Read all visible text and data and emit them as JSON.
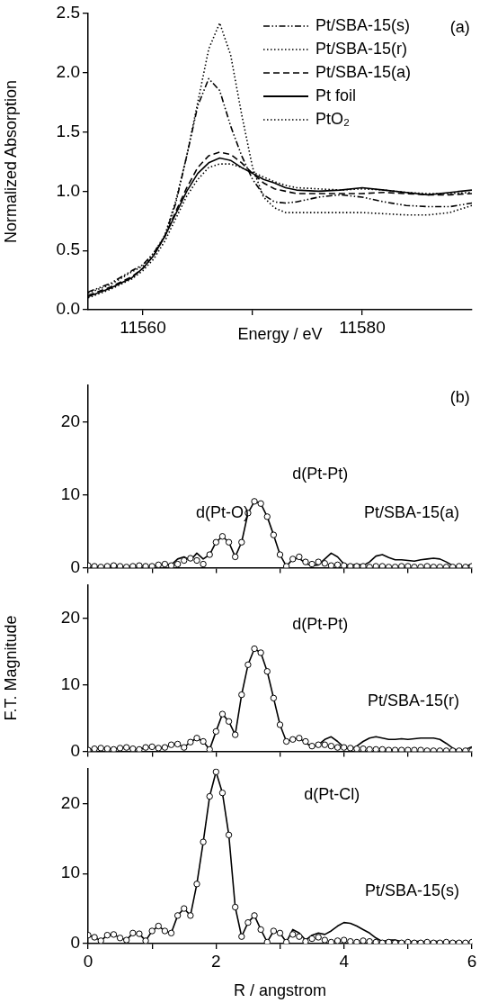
{
  "chart_data": [
    {
      "type": "line",
      "xlabel": "Energy / eV",
      "ylabel": "Normalized Absorption",
      "annotations": [
        "(a)"
      ],
      "legend": "top right",
      "grid": false,
      "x": [
        11555,
        11557,
        11559,
        11560,
        11561,
        11562,
        11563,
        11564,
        11565,
        11566,
        11567,
        11568,
        11569,
        11570,
        11571,
        11572,
        11573,
        11574,
        11576,
        11578,
        11580,
        11582,
        11584,
        11586,
        11588,
        11590
      ],
      "xlim": [
        11555,
        11590
      ],
      "xticks": [
        11560,
        {
          "value": 11570,
          "label": null
        },
        11580
      ],
      "ylim": [
        0,
        2.5
      ],
      "yticks": [
        {
          "value": 0,
          "label": "0.0"
        },
        {
          "value": 0.5,
          "label": "0.5"
        },
        {
          "value": 1,
          "label": "1.0"
        },
        {
          "value": 1.5,
          "label": "1.5"
        },
        {
          "value": 2,
          "label": "2.0"
        },
        {
          "value": 2.5,
          "label": "2.5"
        }
      ],
      "series": [
        {
          "name": "Pt/SBA-15(s)",
          "color": "#000000",
          "line_style": "dashdot",
          "values": [
            0.15,
            0.22,
            0.33,
            0.38,
            0.48,
            0.62,
            0.9,
            1.3,
            1.72,
            1.95,
            1.85,
            1.55,
            1.3,
            1.1,
            0.97,
            0.91,
            0.9,
            0.91,
            0.95,
            0.97,
            0.95,
            0.91,
            0.88,
            0.87,
            0.87,
            0.9
          ]
        },
        {
          "name": "Pt/SBA-15(r)",
          "color": "#000000",
          "line_style": "dotted",
          "values": [
            0.1,
            0.17,
            0.26,
            0.33,
            0.43,
            0.58,
            0.77,
            0.96,
            1.1,
            1.2,
            1.23,
            1.23,
            1.2,
            1.16,
            1.12,
            1.08,
            1.05,
            1.03,
            1.02,
            1.01,
            1.02,
            1.01,
            0.99,
            0.98,
            0.98,
            0.99
          ]
        },
        {
          "name": "Pt/SBA-15(a)",
          "color": "#000000",
          "line_style": "dashed",
          "values": [
            0.12,
            0.19,
            0.28,
            0.35,
            0.46,
            0.62,
            0.83,
            1.03,
            1.2,
            1.3,
            1.33,
            1.31,
            1.24,
            1.15,
            1.07,
            1.02,
            1.0,
            0.98,
            0.98,
            0.98,
            0.98,
            0.99,
            0.98,
            0.97,
            0.97,
            0.98
          ]
        },
        {
          "name": "Pt foil",
          "color": "#000000",
          "line_style": "solid",
          "values": [
            0.11,
            0.18,
            0.27,
            0.35,
            0.46,
            0.62,
            0.81,
            1.0,
            1.15,
            1.24,
            1.28,
            1.26,
            1.2,
            1.15,
            1.1,
            1.07,
            1.03,
            1.01,
            1.0,
            1.01,
            1.03,
            1.01,
            0.99,
            0.97,
            0.99,
            1.01
          ]
        },
        {
          "name": "PtO₂",
          "color": "#000000",
          "line_style": "dotted",
          "values": [
            0.14,
            0.21,
            0.32,
            0.37,
            0.48,
            0.63,
            0.92,
            1.3,
            1.75,
            2.2,
            2.42,
            2.15,
            1.65,
            1.2,
            0.95,
            0.86,
            0.82,
            0.82,
            0.82,
            0.82,
            0.82,
            0.81,
            0.8,
            0.8,
            0.82,
            0.88
          ]
        }
      ]
    },
    {
      "type": "line",
      "annotations": [
        "(b)",
        "d(Pt-O)",
        "d(Pt-Pt)"
      ],
      "grid": false,
      "tick_labels": "y",
      "x": [
        0,
        0.1,
        0.2,
        0.3,
        0.4,
        0.5,
        0.6,
        0.7,
        0.8,
        0.9,
        1,
        1.1,
        1.2,
        1.3,
        1.4,
        1.5,
        1.6,
        1.7,
        1.8,
        1.9,
        2,
        2.1,
        2.2,
        2.3,
        2.4,
        2.5,
        2.6,
        2.7,
        2.8,
        2.9,
        3,
        3.1,
        3.2,
        3.3,
        3.4,
        3.5,
        3.6,
        3.7,
        3.8,
        3.9,
        4,
        4.1,
        4.2,
        4.3,
        4.4,
        4.5,
        4.6,
        4.7,
        4.8,
        4.9,
        5,
        5.1,
        5.2,
        5.3,
        5.4,
        5.5,
        5.6,
        5.7,
        5.8,
        5.9,
        6
      ],
      "xlim": [
        0,
        6
      ],
      "xticks": [
        0,
        {
          "value": 1,
          "label": null
        },
        2,
        {
          "value": 3,
          "label": null
        },
        4,
        {
          "value": 5,
          "label": null
        },
        6
      ],
      "ylim": [
        0,
        25
      ],
      "yticks": [
        0,
        10,
        20
      ],
      "series": [
        {
          "name": "Pt/SBA-15(a)",
          "color": "#000000",
          "values": [
            0.3,
            0.2,
            0.1,
            0.2,
            0.3,
            0.2,
            0.1,
            0.2,
            0.3,
            0.2,
            0.2,
            0.4,
            0.5,
            0.4,
            1.2,
            1.5,
            1.0,
            2.0,
            1.2,
            1.8,
            3.5,
            4.3,
            3.5,
            1.5,
            3.5,
            7.5,
            9.1,
            8.8,
            7.0,
            4.5,
            1.8,
            0.2,
            1.2,
            1.3,
            0.6,
            0.3,
            0.4,
            1.2,
            2.0,
            1.5,
            0.5,
            0.3,
            0.5,
            0.3,
            0.8,
            1.6,
            1.8,
            1.4,
            1.1,
            1.1,
            1.0,
            0.9,
            1.1,
            1.2,
            1.3,
            1.2,
            0.8,
            0.3,
            0.1,
            0.3,
            0.4
          ]
        },
        {
          "type": "scatter",
          "marker": "circle",
          "color": "#000000",
          "values": [
            0.3,
            0.2,
            0.1,
            0.2,
            0.3,
            0.2,
            0.1,
            0.2,
            0.3,
            0.2,
            0.2,
            0.4,
            0.5,
            0.3,
            0.5,
            1.0,
            1.3,
            1.0,
            0.5,
            1.8,
            3.5,
            4.3,
            3.5,
            1.5,
            3.5,
            7.5,
            9.1,
            8.8,
            7.0,
            4.5,
            1.8,
            0.2,
            1.2,
            1.5,
            0.8,
            0.5,
            0.8,
            0.6,
            0.3,
            0.4,
            0.3,
            0.2,
            0.2,
            0.2,
            0.1,
            0.2,
            0.2,
            0.1,
            0.1,
            0.2,
            0.2,
            0.1,
            0.1,
            0.2,
            0.1,
            0.1,
            0.1,
            0.1,
            0.2,
            0.1,
            0.2
          ]
        }
      ]
    },
    {
      "type": "line",
      "ylabel": "F.T. Magnitude",
      "annotations": [
        "d(Pt-Pt)"
      ],
      "grid": false,
      "tick_labels": "y",
      "x": [
        0,
        0.1,
        0.2,
        0.3,
        0.4,
        0.5,
        0.6,
        0.7,
        0.8,
        0.9,
        1,
        1.1,
        1.2,
        1.3,
        1.4,
        1.5,
        1.6,
        1.7,
        1.8,
        1.9,
        2,
        2.1,
        2.2,
        2.3,
        2.4,
        2.5,
        2.6,
        2.7,
        2.8,
        2.9,
        3,
        3.1,
        3.2,
        3.3,
        3.4,
        3.5,
        3.6,
        3.7,
        3.8,
        3.9,
        4,
        4.1,
        4.2,
        4.3,
        4.4,
        4.5,
        4.6,
        4.7,
        4.8,
        4.9,
        5,
        5.1,
        5.2,
        5.3,
        5.4,
        5.5,
        5.6,
        5.7,
        5.8,
        5.9,
        6
      ],
      "xlim": [
        0,
        6
      ],
      "xticks": [
        0,
        {
          "value": 1,
          "label": null
        },
        2,
        {
          "value": 3,
          "label": null
        },
        4,
        {
          "value": 5,
          "label": null
        },
        6
      ],
      "ylim": [
        0,
        25
      ],
      "yticks": [
        0,
        10,
        20
      ],
      "series": [
        {
          "name": "Pt/SBA-15(r)",
          "color": "#000000",
          "values": [
            0.2,
            0.4,
            0.5,
            0.4,
            0.3,
            0.5,
            0.6,
            0.4,
            0.3,
            0.6,
            0.7,
            0.5,
            0.6,
            1.0,
            1.1,
            0.6,
            1.4,
            2.0,
            1.5,
            0.3,
            3.0,
            5.6,
            4.5,
            2.5,
            8.5,
            13.0,
            15.4,
            14.8,
            12.0,
            8.0,
            4.0,
            1.5,
            1.8,
            2.0,
            1.3,
            0.7,
            1.0,
            1.8,
            2.2,
            1.5,
            0.6,
            0.3,
            0.8,
            1.5,
            2.0,
            2.2,
            2.0,
            1.8,
            1.8,
            1.9,
            1.8,
            1.9,
            2.0,
            2.0,
            2.0,
            1.8,
            1.2,
            0.5,
            0.0,
            0.3,
            0.7
          ]
        },
        {
          "type": "scatter",
          "marker": "circle",
          "color": "#000000",
          "values": [
            0.2,
            0.4,
            0.5,
            0.4,
            0.3,
            0.5,
            0.6,
            0.4,
            0.3,
            0.6,
            0.7,
            0.5,
            0.6,
            1.0,
            1.1,
            0.6,
            1.4,
            2.0,
            1.5,
            0.3,
            3.0,
            5.6,
            4.5,
            2.5,
            8.5,
            13.0,
            15.4,
            14.8,
            12.0,
            8.0,
            4.0,
            1.5,
            1.8,
            2.0,
            1.5,
            0.8,
            1.0,
            1.0,
            0.8,
            0.6,
            0.6,
            0.5,
            0.4,
            0.4,
            0.3,
            0.3,
            0.3,
            0.2,
            0.2,
            0.2,
            0.2,
            0.2,
            0.2,
            0.1,
            0.1,
            0.1,
            0.1,
            0.1,
            0.1,
            0.1,
            0.1
          ]
        }
      ]
    },
    {
      "type": "line",
      "xlabel": "R / angstrom",
      "annotations": [
        "d(Pt-Cl)"
      ],
      "grid": false,
      "x": [
        0,
        0.1,
        0.2,
        0.3,
        0.4,
        0.5,
        0.6,
        0.7,
        0.8,
        0.9,
        1,
        1.1,
        1.2,
        1.3,
        1.4,
        1.5,
        1.6,
        1.7,
        1.8,
        1.9,
        2,
        2.1,
        2.2,
        2.3,
        2.4,
        2.5,
        2.6,
        2.7,
        2.8,
        2.9,
        3,
        3.1,
        3.2,
        3.3,
        3.4,
        3.5,
        3.6,
        3.7,
        3.8,
        3.9,
        4,
        4.1,
        4.2,
        4.3,
        4.4,
        4.5,
        4.6,
        4.7,
        4.8,
        4.9,
        5,
        5.1,
        5.2,
        5.3,
        5.4,
        5.5,
        5.6,
        5.7,
        5.8,
        5.9,
        6
      ],
      "xlim": [
        0,
        6
      ],
      "xticks": [
        0,
        {
          "value": 1,
          "label": null
        },
        2,
        {
          "value": 3,
          "label": null
        },
        4,
        {
          "value": 5,
          "label": null
        },
        6
      ],
      "ylim": [
        0,
        25
      ],
      "yticks": [
        0,
        10,
        20
      ],
      "series": [
        {
          "name": "Pt/SBA-15(s)",
          "color": "#000000",
          "values": [
            1.2,
            0.9,
            0.4,
            1.2,
            1.3,
            0.8,
            0.5,
            1.5,
            1.4,
            0.4,
            1.8,
            2.5,
            1.8,
            1.5,
            4.0,
            5.0,
            4.0,
            8.5,
            14.5,
            21.0,
            24.5,
            21.5,
            15.5,
            5.2,
            1.0,
            3.0,
            4.0,
            2.0,
            0.2,
            1.8,
            1.5,
            0.2,
            2.0,
            1.5,
            0.5,
            1.2,
            1.5,
            1.3,
            1.8,
            2.5,
            3.0,
            2.9,
            2.5,
            2.0,
            1.5,
            0.8,
            0.3,
            0.5,
            0.5,
            0.3,
            0.2,
            0.3,
            0.3,
            0.2,
            0.3,
            0.3,
            0.2,
            0.3,
            0.2,
            0.2,
            0.2
          ]
        },
        {
          "type": "scatter",
          "marker": "circle",
          "color": "#000000",
          "values": [
            1.2,
            0.9,
            0.4,
            1.2,
            1.3,
            0.8,
            0.5,
            1.5,
            1.4,
            0.4,
            1.8,
            2.5,
            1.8,
            1.5,
            4.0,
            5.0,
            4.0,
            8.5,
            14.5,
            21.0,
            24.5,
            21.5,
            15.5,
            5.2,
            1.0,
            3.0,
            4.0,
            2.0,
            0.2,
            1.8,
            1.5,
            0.2,
            1.3,
            1.0,
            0.3,
            0.7,
            0.9,
            0.5,
            0.2,
            0.4,
            0.5,
            0.3,
            0.2,
            0.4,
            0.3,
            0.2,
            0.1,
            0.2,
            0.1,
            0.1,
            0.2,
            0.1,
            0.1,
            0.2,
            0.1,
            0.1,
            0.2,
            0.1,
            0.1,
            0.1,
            0.2
          ]
        }
      ]
    }
  ]
}
